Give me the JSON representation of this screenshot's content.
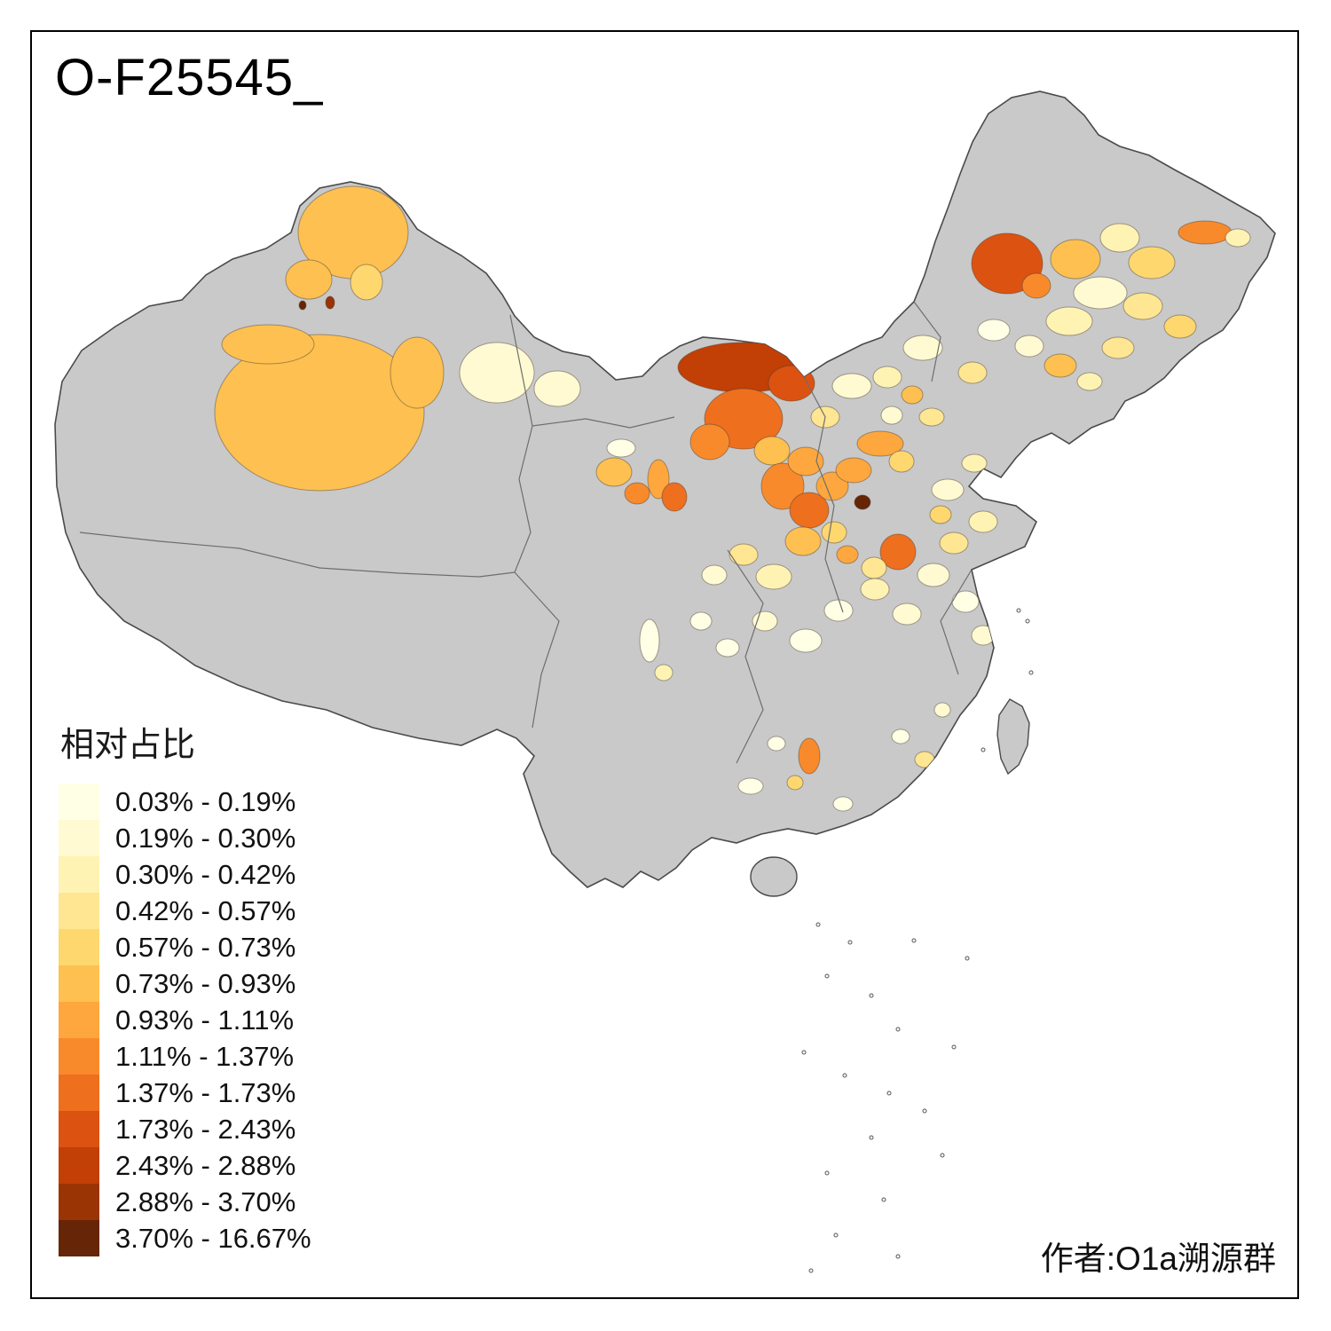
{
  "title": "O-F25545_",
  "legend": {
    "title": "相对占比",
    "items": [
      {
        "label": "0.03% - 0.19%",
        "color": "#FFFFE5"
      },
      {
        "label": "0.19% - 0.30%",
        "color": "#FFFAD2"
      },
      {
        "label": "0.30% - 0.42%",
        "color": "#FFF3B4"
      },
      {
        "label": "0.42% - 0.57%",
        "color": "#FEE692"
      },
      {
        "label": "0.57% - 0.73%",
        "color": "#FED76F"
      },
      {
        "label": "0.73% - 0.93%",
        "color": "#FEC050"
      },
      {
        "label": "0.93% - 1.11%",
        "color": "#FEA73E"
      },
      {
        "label": "1.11% - 1.37%",
        "color": "#F98A2B"
      },
      {
        "label": "1.37% - 1.73%",
        "color": "#EE6F1E"
      },
      {
        "label": "1.73% - 2.43%",
        "color": "#DC5211"
      },
      {
        "label": "2.43% - 2.88%",
        "color": "#C23F06"
      },
      {
        "label": "2.88% - 3.70%",
        "color": "#9A3404"
      },
      {
        "label": "3.70% - 16.67%",
        "color": "#662506"
      }
    ]
  },
  "attribution": "作者:O1a溯源群",
  "map": {
    "no_data_color": "#C9C9C9",
    "border_color": "#4A4A4A",
    "inner_border_color": "#6E6E6E",
    "background": "#FFFFFF"
  }
}
